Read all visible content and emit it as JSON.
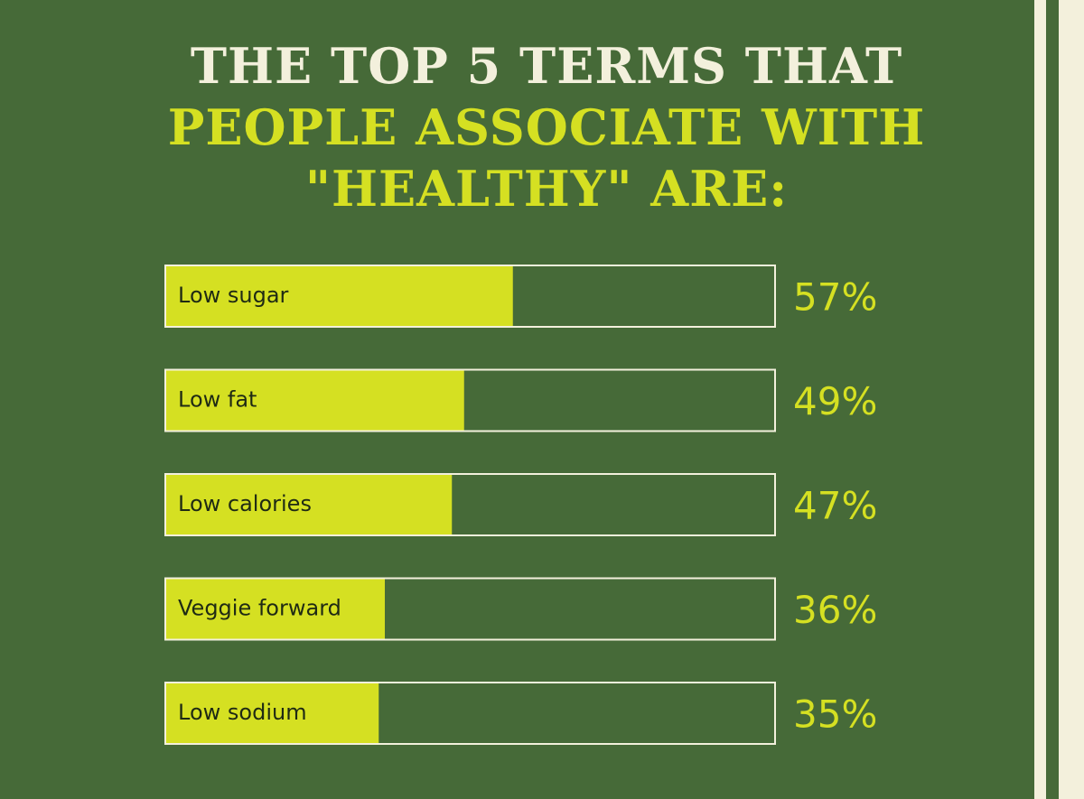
{
  "chart_data": {
    "type": "bar",
    "orientation": "horizontal",
    "title": [
      "THE TOP 5 TERMS THAT",
      "PEOPLE ASSOCIATE WITH",
      "\"HEALTHY\" ARE:"
    ],
    "title_colors": [
      "#f3f0dc",
      "#d5e022",
      "#d5e022"
    ],
    "categories": [
      "Low sugar",
      "Low fat",
      "Low calories",
      "Veggie forward",
      "Low sodium"
    ],
    "values": [
      57,
      49,
      47,
      36,
      35
    ],
    "value_labels": [
      "57%",
      "49%",
      "47%",
      "36%",
      "35%"
    ],
    "color": "#d5e022",
    "xlim": [
      0,
      100
    ]
  }
}
